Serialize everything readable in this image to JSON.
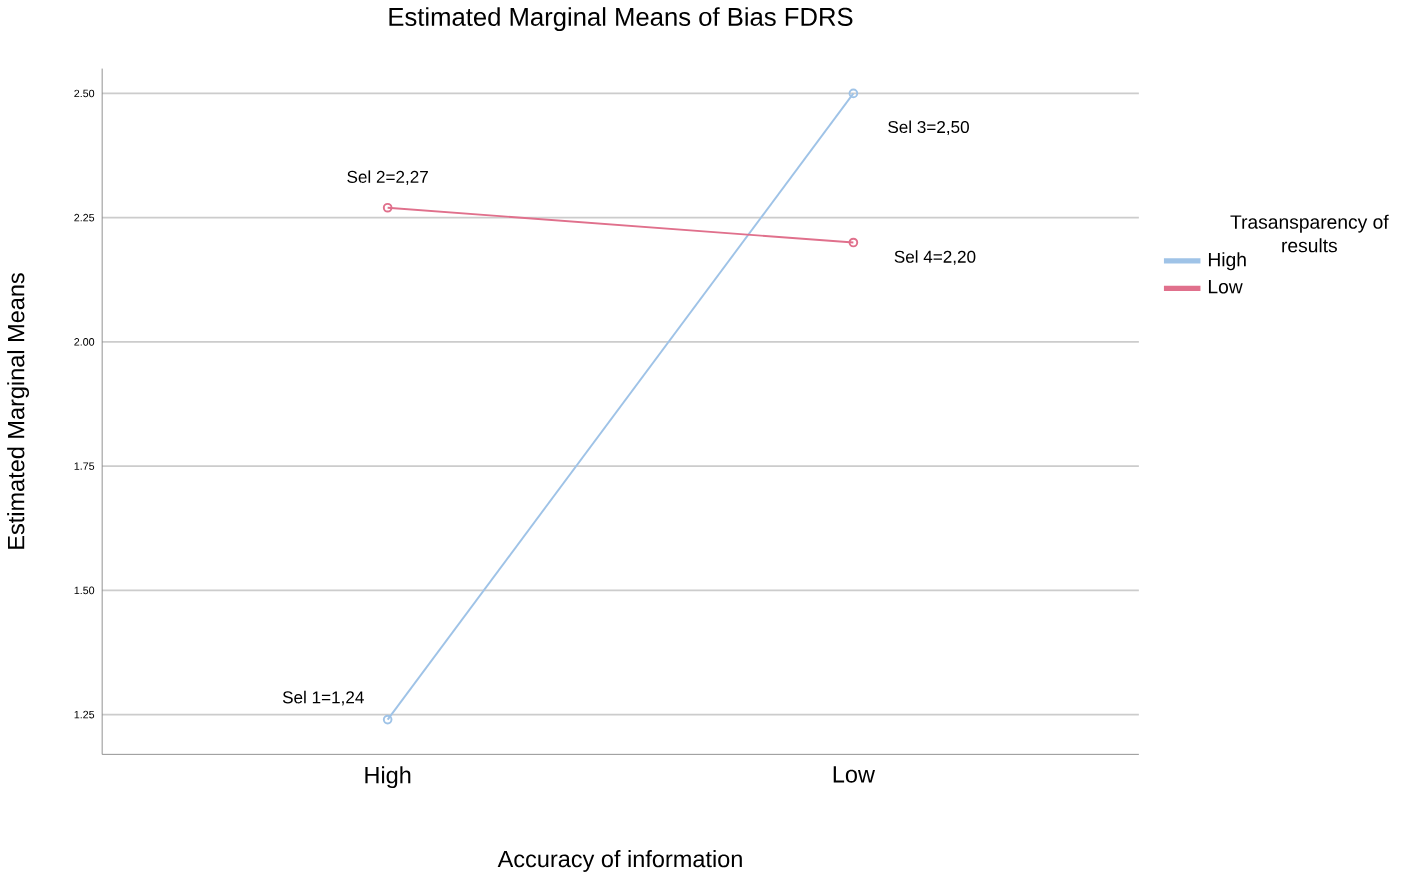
{
  "chart_data": {
    "type": "line",
    "title": "Estimated Marginal Means of Bias FDRS",
    "xlabel": "Accuracy of information",
    "ylabel": "Estimated Marginal Means",
    "legend_title": "Trasansparency of results",
    "categories": [
      "High",
      "Low"
    ],
    "series": [
      {
        "name": "High",
        "color": "#9fc3e7",
        "values": [
          1.24,
          2.5
        ]
      },
      {
        "name": "Low",
        "color": "#e0708c",
        "values": [
          2.27,
          2.2
        ]
      }
    ],
    "ylim": [
      1.17,
      2.55
    ],
    "yticks": [
      {
        "value": 1.25,
        "label": "1.25"
      },
      {
        "value": 1.5,
        "label": "1.50"
      },
      {
        "value": 1.75,
        "label": "1.75"
      },
      {
        "value": 2.0,
        "label": "2.00"
      },
      {
        "value": 2.25,
        "label": "2.25"
      },
      {
        "value": 2.5,
        "label": "2.50"
      }
    ],
    "grid": "y",
    "legend": "right",
    "marker": "circle",
    "line_style": "solid",
    "annotations": [
      {
        "text": "Sel 1=1,24",
        "x": "High",
        "y": 1.24
      },
      {
        "text": "Sel 2=2,27",
        "x": "High",
        "y": 2.27
      },
      {
        "text": "Sel 3=2,50",
        "x": "Low",
        "y": 2.5
      },
      {
        "text": "Sel 4=2,20",
        "x": "Low",
        "y": 2.2
      }
    ]
  }
}
